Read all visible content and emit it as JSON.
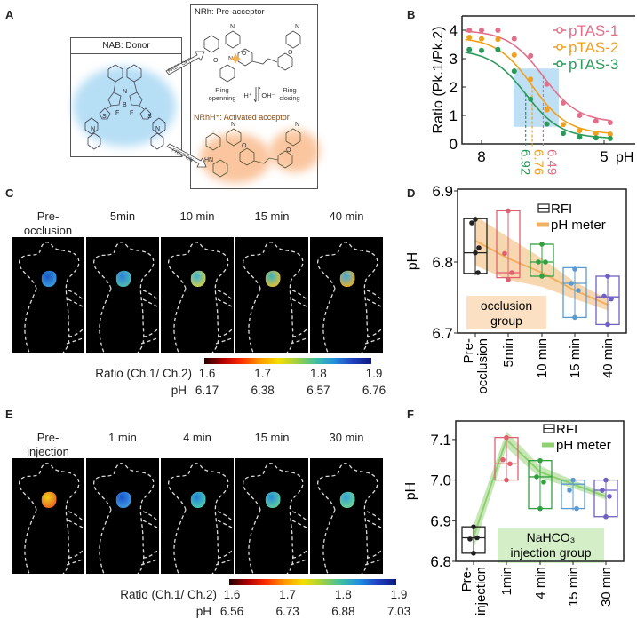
{
  "panel_labels": [
    "A",
    "B",
    "C",
    "D",
    "E",
    "F"
  ],
  "panel_a": {
    "donor_title": "NAB: Donor",
    "acceptor_title": "NRh: Pre-acceptor",
    "fret_off": "FRET OFF",
    "fret_on": "FRET ON",
    "ring_opening": [
      "Ring",
      "openning"
    ],
    "ring_closing": [
      "Ring",
      "closing"
    ],
    "h_plus": "H⁺",
    "oh_minus": "OH⁻",
    "activated_title": "NRhH⁺: Activated acceptor",
    "atoms": {
      "N": "N",
      "B": "B",
      "F": "F",
      "S": "S",
      "O": "O",
      "HN": "HN"
    },
    "colors": {
      "donor_glow": "#7cc4ee",
      "acceptor_glow": "#f7a060",
      "fret_off_star": "#f5b050"
    }
  },
  "chart_data": [
    {
      "id": "B",
      "type": "line",
      "title": "",
      "xlabel": "pH",
      "ylabel": "Ratio (Pk.1/Pk.2)",
      "xlim": [
        8.48,
        4.3
      ],
      "ylim": [
        0,
        4.5
      ],
      "xticks": [
        8,
        5
      ],
      "yticks": [
        0,
        1,
        2,
        3,
        4
      ],
      "x": [
        8.3,
        8.0,
        7.6,
        7.2,
        6.8,
        6.4,
        6.0,
        5.6,
        5.2,
        4.85
      ],
      "series": [
        {
          "name": "pTAS-1",
          "color": "#e0708a",
          "pKa": 6.49,
          "pKa_label": "6.49",
          "values": [
            4.0,
            4.0,
            4.0,
            3.7,
            3.1,
            2.1,
            1.44,
            1.0,
            0.8,
            0.75
          ]
        },
        {
          "name": "pTAS-2",
          "color": "#f0a020",
          "pKa": 6.76,
          "pKa_label": "6.76",
          "values": [
            3.75,
            3.7,
            3.68,
            3.13,
            2.27,
            1.2,
            0.68,
            0.47,
            0.37,
            0.34
          ]
        },
        {
          "name": "pTAS-3",
          "color": "#2a9a5a",
          "pKa": 6.92,
          "pKa_label": "6.92",
          "values": [
            3.32,
            3.29,
            3.32,
            2.56,
            1.57,
            0.7,
            0.37,
            0.24,
            0.21,
            0.19
          ]
        }
      ],
      "highlight": {
        "x": [
          7.22,
          6.11
        ],
        "y": [
          0.6,
          2.65
        ],
        "color": "#a8d4f0"
      },
      "legend": "top-right"
    },
    {
      "id": "D",
      "type": "box",
      "xlabel": "",
      "ylabel": "pH",
      "ylim": [
        6.7,
        6.9
      ],
      "yticks": [
        6.7,
        6.8,
        6.9
      ],
      "categories": [
        [
          "Pre-",
          "occlusion"
        ],
        [
          "5min"
        ],
        [
          "10 min"
        ],
        [
          "15 min"
        ],
        [
          "40 min"
        ]
      ],
      "colors": [
        "#222222",
        "#e06070",
        "#30a040",
        "#5a9ad0",
        "#7060c0"
      ],
      "boxes": [
        {
          "q1": 6.784,
          "q3": 6.861,
          "median": 6.813,
          "points": [
            6.86,
            6.855,
            6.82,
            6.813,
            6.785
          ]
        },
        {
          "q1": 6.778,
          "q3": 6.872,
          "median": 6.785,
          "points": [
            6.872,
            6.812,
            6.785,
            6.775
          ]
        },
        {
          "q1": 6.78,
          "q3": 6.825,
          "median": 6.8,
          "points": [
            6.825,
            6.8,
            6.8,
            6.78
          ]
        },
        {
          "q1": 6.722,
          "q3": 6.792,
          "median": 6.77,
          "points": [
            6.79,
            6.77,
            6.76,
            6.722
          ]
        },
        {
          "q1": 6.712,
          "q3": 6.78,
          "median": 6.751,
          "points": [
            6.78,
            6.752,
            6.748,
            6.712
          ]
        }
      ],
      "ph_meter": {
        "values": [
          6.83,
          6.805,
          6.785,
          6.76,
          6.74
        ],
        "band": [
          0.035,
          0.03,
          0.02,
          0.012,
          0.008
        ],
        "color": "#f0b060"
      },
      "legend": [
        "RFI",
        "pH meter"
      ],
      "group_label": [
        "occlusion",
        "group"
      ],
      "group_color": "#fbe0c4"
    },
    {
      "id": "F",
      "type": "box",
      "xlabel": "",
      "ylabel": "pH",
      "ylim": [
        6.8,
        7.15
      ],
      "yticks": [
        6.8,
        6.9,
        7.0,
        7.1
      ],
      "categories": [
        [
          "Pre-",
          "injection"
        ],
        [
          "1min"
        ],
        [
          "4 min"
        ],
        [
          "15 min"
        ],
        [
          "30 min"
        ]
      ],
      "colors": [
        "#222222",
        "#e06070",
        "#30a040",
        "#5a9ad0",
        "#7060c0"
      ],
      "boxes": [
        {
          "q1": 6.82,
          "q3": 6.885,
          "median": 6.858,
          "points": [
            6.885,
            6.855,
            6.858,
            6.82
          ]
        },
        {
          "q1": 7.0,
          "q3": 7.105,
          "median": 7.04,
          "points": [
            7.105,
            7.05,
            7.04,
            7.0
          ]
        },
        {
          "q1": 6.93,
          "q3": 7.048,
          "median": 7.008,
          "points": [
            7.048,
            7.008,
            6.995,
            6.93
          ]
        },
        {
          "q1": 6.93,
          "q3": 7.0,
          "median": 6.99,
          "points": [
            7.0,
            6.975,
            6.93
          ]
        },
        {
          "q1": 6.91,
          "q3": 7.0,
          "median": 6.975,
          "points": [
            7.0,
            6.975,
            6.96,
            6.91
          ]
        }
      ],
      "ph_meter": {
        "values": [
          6.86,
          7.1,
          7.02,
          6.99,
          6.96
        ],
        "band": [
          0.03,
          0.02,
          0.015,
          0.01,
          0.008
        ],
        "color": "#8fd070"
      },
      "legend": [
        "RFI",
        "pH meter"
      ],
      "group_label": [
        "NaHCO₃",
        "injection group"
      ],
      "group_color": "#d4efc8"
    }
  ],
  "panel_c": {
    "headers": [
      [
        "Pre-",
        "occlusion"
      ],
      [
        "",
        "5min"
      ],
      [
        "",
        "10 min"
      ],
      [
        "",
        "15 min"
      ],
      [
        "",
        "40 min"
      ]
    ],
    "blobs": [
      [
        "#1c56c8",
        "#3aa0e0"
      ],
      [
        "#2a7fd8",
        "#50c0b0"
      ],
      [
        "#3ab0d8",
        "#d8d040"
      ],
      [
        "#3ab0c0",
        "#e8c030"
      ],
      [
        "#40a8e0",
        "#f0b020"
      ]
    ],
    "ratio_label": "Ratio (Ch.1/ Ch.2)",
    "ratio_ticks": [
      "1.6",
      "1.7",
      "1.8",
      "1.9"
    ],
    "ph_label": "pH",
    "ph_ticks": [
      "6.17",
      "6.38",
      "6.57",
      "6.76"
    ]
  },
  "panel_e": {
    "headers": [
      [
        "Pre-",
        "injection"
      ],
      [
        "",
        "1 min"
      ],
      [
        "",
        "4 min"
      ],
      [
        "",
        "15 min"
      ],
      [
        "",
        "30 min"
      ]
    ],
    "blobs": [
      [
        "#f0d020",
        "#e86020"
      ],
      [
        "#1c50d0",
        "#40a0e0"
      ],
      [
        "#2080d8",
        "#50d0b0"
      ],
      [
        "#2a8ad8",
        "#60d0a0"
      ],
      [
        "#30a0d8",
        "#70d890"
      ]
    ],
    "ratio_label": "Ratio (Ch.1/ Ch.2)",
    "ratio_ticks": [
      "1.6",
      "1.7",
      "1.8",
      "1.9"
    ],
    "ph_label": "pH",
    "ph_ticks": [
      "6.56",
      "6.73",
      "6.88",
      "7.03"
    ]
  }
}
